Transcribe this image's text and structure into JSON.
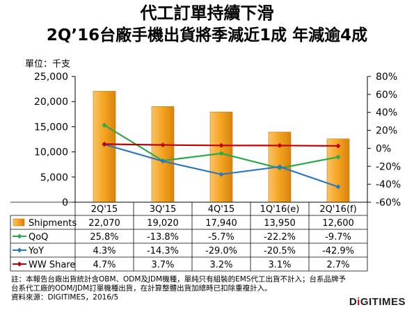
{
  "title_line1": "代工訂單持續下滑",
  "title_line2": "2Q’16台廠手機出貨將季減近1成  年減逾4成",
  "unit_label": "單位：千支",
  "notes": [
    "註：本報告台廠出貨統計含OBM、ODM及JDM機種，單純只有組裝的EMS代工出貨不計入；台系品牌予",
    "台系代工廠的ODM/JDM訂單機種出貨，在計算整體出貨加總時已扣除重複計入。",
    "資料來源：DIGITIMES，2016/5"
  ],
  "brand": {
    "prefix": "D",
    "dot": "i",
    "suffix": "GITIMES"
  },
  "chart_data": {
    "type": "bar+line",
    "categories": [
      "2Q'15",
      "3Q'15",
      "4Q'15",
      "1Q'16(e)",
      "2Q'16(f)"
    ],
    "y_left": {
      "min": 0,
      "max": 25000,
      "ticks": [
        "0",
        "5,000",
        "10,000",
        "15,000",
        "20,000",
        "25,000"
      ]
    },
    "y_right": {
      "min": -60,
      "max": 80,
      "ticks": [
        "-60%",
        "-40%",
        "-20%",
        "0%",
        "20%",
        "40%",
        "60%",
        "80%"
      ]
    },
    "bar_series": {
      "name": "Shipments",
      "color": "#f5a623",
      "values": [
        22070,
        19020,
        17940,
        13950,
        12600
      ],
      "labels": [
        "22,070",
        "19,020",
        "17,940",
        "13,950",
        "12,600"
      ]
    },
    "line_series": [
      {
        "name": "QoQ",
        "color": "#2aa84a",
        "values": [
          25.8,
          -13.8,
          -5.7,
          -22.2,
          -9.7
        ],
        "labels": [
          "25.8%",
          "-13.8%",
          "-5.7%",
          "-22.2%",
          "-9.7%"
        ]
      },
      {
        "name": "YoY",
        "color": "#2e75c0",
        "values": [
          4.3,
          -14.3,
          -29.0,
          -20.5,
          -42.9
        ],
        "labels": [
          "4.3%",
          "-14.3%",
          "-29.0%",
          "-20.5%",
          "-42.9%"
        ]
      },
      {
        "name": "WW Share",
        "color": "#c00000",
        "values": [
          4.7,
          3.7,
          3.2,
          3.1,
          2.7
        ],
        "labels": [
          "4.7%",
          "3.7%",
          "3.2%",
          "3.1%",
          "2.7%"
        ]
      }
    ],
    "grid": false,
    "legend": "data-table-below"
  }
}
